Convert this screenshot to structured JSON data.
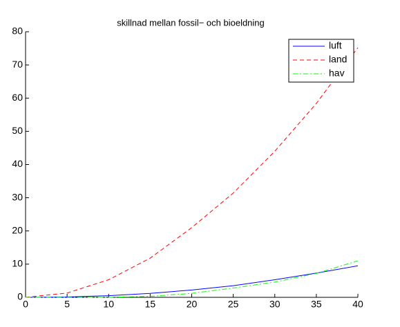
{
  "chart_data": {
    "type": "line",
    "title": "skillnad mellan fossil− och bioeldning",
    "x": [
      0,
      5,
      10,
      15,
      20,
      25,
      30,
      35,
      40
    ],
    "series": [
      {
        "name": "luft",
        "color": "#0000ff",
        "linestyle": "-",
        "values": [
          0,
          0.1,
          0.5,
          1.2,
          2.2,
          3.5,
          5.3,
          7.3,
          9.5
        ]
      },
      {
        "name": "land",
        "color": "#ff0000",
        "linestyle": "--",
        "values": [
          0,
          1.3,
          5.3,
          11.8,
          21,
          31.4,
          44,
          58.4,
          75.2
        ]
      },
      {
        "name": "hav",
        "color": "#00ff00",
        "linestyle": "-.",
        "values": [
          0,
          0,
          0,
          0.3,
          1.2,
          2.8,
          4.6,
          7.2,
          11
        ]
      }
    ],
    "xlim": [
      0,
      40
    ],
    "xticks": [
      0,
      5,
      10,
      15,
      20,
      25,
      30,
      35,
      40
    ],
    "ylim": [
      0,
      80
    ],
    "yticks": [
      0,
      10,
      20,
      30,
      40,
      50,
      60,
      70,
      80
    ],
    "grid": false,
    "legend": "top-right"
  }
}
